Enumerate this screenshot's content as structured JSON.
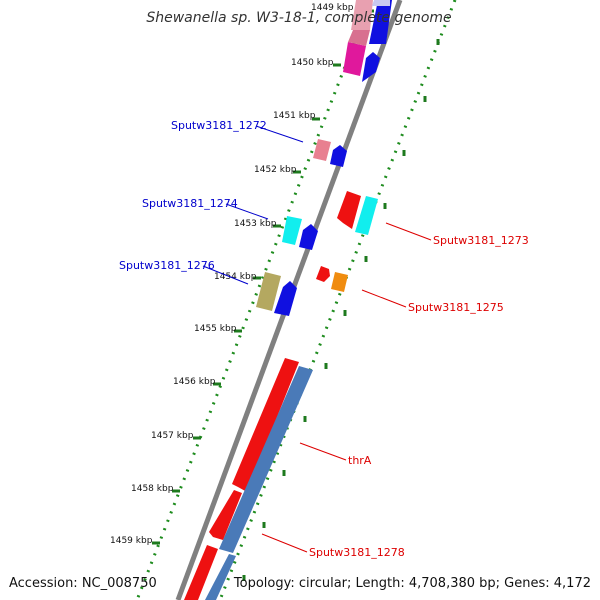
{
  "title": "Shewanella sp. W3-18-1, complete genome",
  "footer": {
    "accession": "Accession: NC_008750",
    "summary": "Topology: circular; Length: 4,708,380 bp; Genes: 4,172"
  },
  "colors": {
    "forward_label": "#0000cc",
    "reverse_label": "#dd0000",
    "backbone": "#808080",
    "tick": "#1e8c1e"
  },
  "ticks": [
    "1449 kbp",
    "1450 kbp",
    "1451 kbp",
    "1452 kbp",
    "1453 kbp",
    "1454 kbp",
    "1455 kbp",
    "1456 kbp",
    "1457 kbp",
    "1458 kbp",
    "1459 kbp"
  ],
  "gene_labels": {
    "forward": [
      "Sputw3181_1272",
      "Sputw3181_1274",
      "Sputw3181_1276"
    ],
    "reverse": [
      "Sputw3181_1273",
      "Sputw3181_1275",
      "thrA",
      "Sputw3181_1278"
    ]
  }
}
